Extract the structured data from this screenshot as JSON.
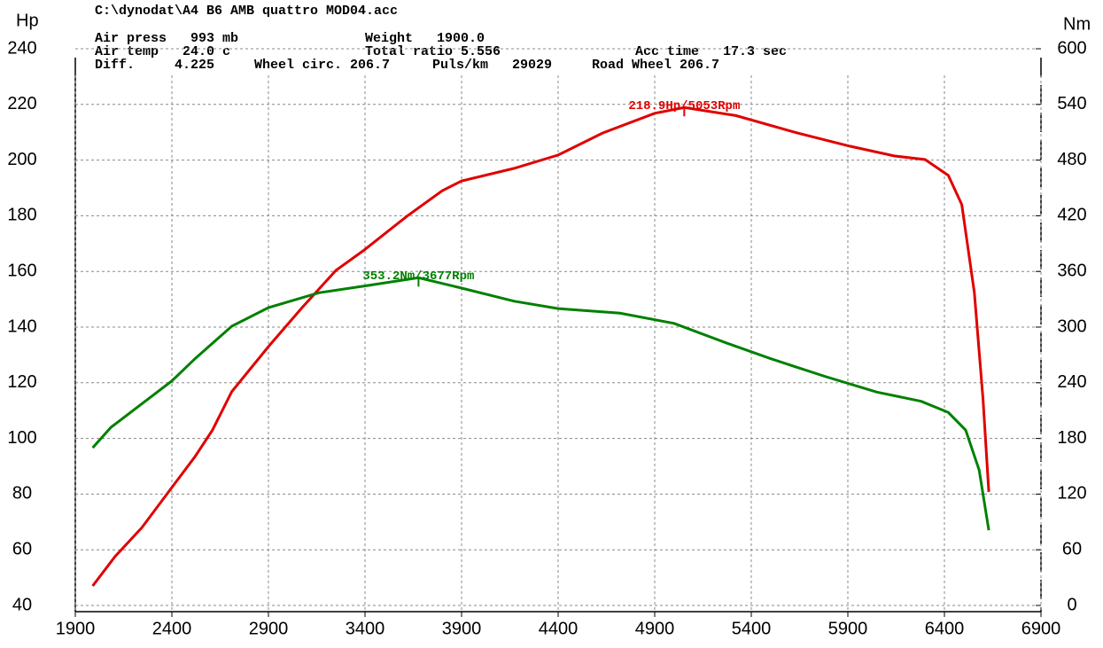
{
  "chart_data": {
    "type": "line",
    "header": [
      "C:\\dynodat\\A4 B6 AMB quattro MOD04.acc",
      "Air press   993 mb",
      "Weight   1900.0",
      "Air temp   24.0 c",
      "Total ratio 5.556",
      "Acc time   17.3 sec",
      "Diff.     4.225",
      "Wheel circ. 206.7",
      "Puls/km   29029",
      "Road Wheel 206.7"
    ],
    "y_label": "Hp",
    "y2_label": "Nm",
    "xlim": [
      1900,
      6900
    ],
    "xticks": [
      1900,
      2400,
      2900,
      3400,
      3900,
      4400,
      4900,
      5400,
      5900,
      6400,
      6900
    ],
    "ylim": [
      40,
      240
    ],
    "yticks": [
      40,
      60,
      80,
      100,
      120,
      140,
      160,
      180,
      200,
      220,
      240
    ],
    "y2lim": [
      0,
      600
    ],
    "y2ticks": [
      0,
      60,
      120,
      180,
      240,
      300,
      360,
      420,
      480,
      540,
      600
    ],
    "grid": true,
    "series": [
      {
        "color": "#e00000",
        "axis": "y",
        "x": [
          1990,
          2105,
          2245,
          2400,
          2520,
          2610,
          2710,
          2900,
          3070,
          3250,
          3390,
          3620,
          3800,
          3900,
          4170,
          4400,
          4630,
          4900,
          5053,
          5320,
          5640,
          5910,
          6140,
          6300,
          6420,
          6490,
          6555,
          6600,
          6630
        ],
        "values": [
          47,
          57.5,
          68,
          82.4,
          93.5,
          103,
          116.8,
          133,
          146.7,
          160.4,
          167.4,
          180,
          189,
          192.5,
          197,
          201.8,
          209.7,
          216.8,
          218.9,
          216,
          209.7,
          205,
          201.5,
          200.2,
          194.5,
          184,
          152.4,
          114,
          80.8
        ],
        "annotation": "218.9Hp/5053Rpm"
      },
      {
        "color": "#008000",
        "axis": "y2",
        "x": [
          1990,
          2085,
          2400,
          2520,
          2710,
          2900,
          3160,
          3390,
          3677,
          3900,
          4170,
          4400,
          4720,
          5000,
          5270,
          5500,
          5780,
          6050,
          6280,
          6420,
          6510,
          6580,
          6630
        ],
        "values": [
          170,
          192,
          242,
          266,
          301,
          321,
          337,
          344,
          353.2,
          342,
          328,
          320,
          315,
          304,
          283,
          266,
          247,
          230,
          220,
          208,
          189,
          146,
          81
        ],
        "annotation": "353.2Nm/3677Rpm"
      }
    ]
  }
}
